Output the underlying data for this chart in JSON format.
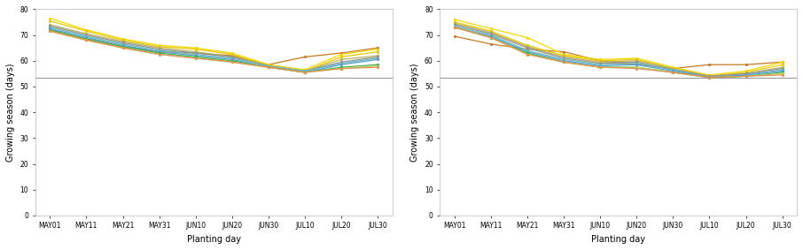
{
  "x_labels": [
    "MAY01",
    "MAY11",
    "MAY21",
    "MAY31",
    "JUN10",
    "JUN20",
    "JUN30",
    "JUL10",
    "JUL20",
    "JUL30"
  ],
  "ylabel": "Growing season (days)",
  "xlabel": "Planting day",
  "ylim": [
    0,
    80
  ],
  "yticks": [
    0,
    10,
    20,
    30,
    40,
    50,
    60,
    70,
    80
  ],
  "hline": 53.5,
  "hline_color": "#999999",
  "left_series": [
    {
      "color": "#c87820",
      "values": [
        72.0,
        68.5,
        65.5,
        63.5,
        63.0,
        62.0,
        58.5,
        61.5,
        63.0,
        65.0
      ]
    },
    {
      "color": "#f5d800",
      "values": [
        76.5,
        72.0,
        68.5,
        66.0,
        65.0,
        63.0,
        58.5,
        56.5,
        62.5,
        64.5
      ]
    },
    {
      "color": "#e8c800",
      "values": [
        75.5,
        71.5,
        68.0,
        65.5,
        64.5,
        62.5,
        58.0,
        56.0,
        61.5,
        63.5
      ]
    },
    {
      "color": "#b8b060",
      "values": [
        74.0,
        70.5,
        67.5,
        65.0,
        63.5,
        61.5,
        58.0,
        56.0,
        60.5,
        62.0
      ]
    },
    {
      "color": "#909090",
      "values": [
        73.5,
        70.0,
        67.0,
        64.5,
        63.0,
        61.5,
        58.0,
        56.0,
        59.5,
        61.5
      ]
    },
    {
      "color": "#70b8b8",
      "values": [
        73.0,
        69.5,
        66.5,
        64.0,
        62.5,
        61.0,
        58.0,
        56.0,
        59.0,
        61.0
      ]
    },
    {
      "color": "#50a0d0",
      "values": [
        72.5,
        69.0,
        66.0,
        63.5,
        62.0,
        60.5,
        57.5,
        55.5,
        58.5,
        60.5
      ]
    },
    {
      "color": "#40b050",
      "values": [
        72.0,
        68.5,
        65.5,
        63.0,
        61.5,
        60.0,
        57.5,
        55.5,
        57.5,
        58.5
      ]
    },
    {
      "color": "#c0d060",
      "values": [
        71.5,
        68.0,
        65.0,
        62.5,
        61.0,
        59.5,
        57.5,
        55.5,
        57.0,
        58.0
      ]
    },
    {
      "color": "#e09050",
      "values": [
        71.5,
        68.0,
        65.0,
        62.5,
        61.0,
        59.5,
        57.5,
        55.5,
        57.0,
        57.5
      ]
    }
  ],
  "right_series": [
    {
      "color": "#c87820",
      "values": [
        69.5,
        66.5,
        64.5,
        63.5,
        60.0,
        58.5,
        57.0,
        58.5,
        58.5,
        59.5
      ]
    },
    {
      "color": "#f5d800",
      "values": [
        76.0,
        72.5,
        69.0,
        62.5,
        60.5,
        61.0,
        57.5,
        54.5,
        56.0,
        59.5
      ]
    },
    {
      "color": "#e8c800",
      "values": [
        75.0,
        71.5,
        66.0,
        62.0,
        60.0,
        60.5,
        57.0,
        54.0,
        55.5,
        58.5
      ]
    },
    {
      "color": "#b8b060",
      "values": [
        74.5,
        71.0,
        65.5,
        61.5,
        59.5,
        60.0,
        57.0,
        54.0,
        55.0,
        57.5
      ]
    },
    {
      "color": "#909090",
      "values": [
        74.0,
        70.5,
        65.0,
        61.0,
        59.0,
        59.5,
        56.5,
        54.0,
        55.0,
        57.0
      ]
    },
    {
      "color": "#70b8b8",
      "values": [
        73.5,
        70.0,
        64.0,
        60.5,
        58.5,
        59.0,
        56.5,
        53.5,
        54.5,
        56.5
      ]
    },
    {
      "color": "#50a0d0",
      "values": [
        73.0,
        69.5,
        63.5,
        60.0,
        58.0,
        58.5,
        56.0,
        53.5,
        54.5,
        56.0
      ]
    },
    {
      "color": "#40b050",
      "values": [
        73.0,
        69.0,
        63.0,
        59.5,
        57.5,
        57.5,
        55.5,
        53.5,
        54.0,
        55.5
      ]
    },
    {
      "color": "#c0d060",
      "values": [
        73.0,
        69.0,
        62.5,
        59.5,
        57.5,
        57.5,
        55.5,
        53.5,
        54.0,
        55.0
      ]
    },
    {
      "color": "#e09050",
      "values": [
        73.0,
        69.0,
        62.5,
        59.5,
        57.5,
        57.0,
        55.5,
        53.5,
        54.0,
        54.5
      ]
    }
  ]
}
